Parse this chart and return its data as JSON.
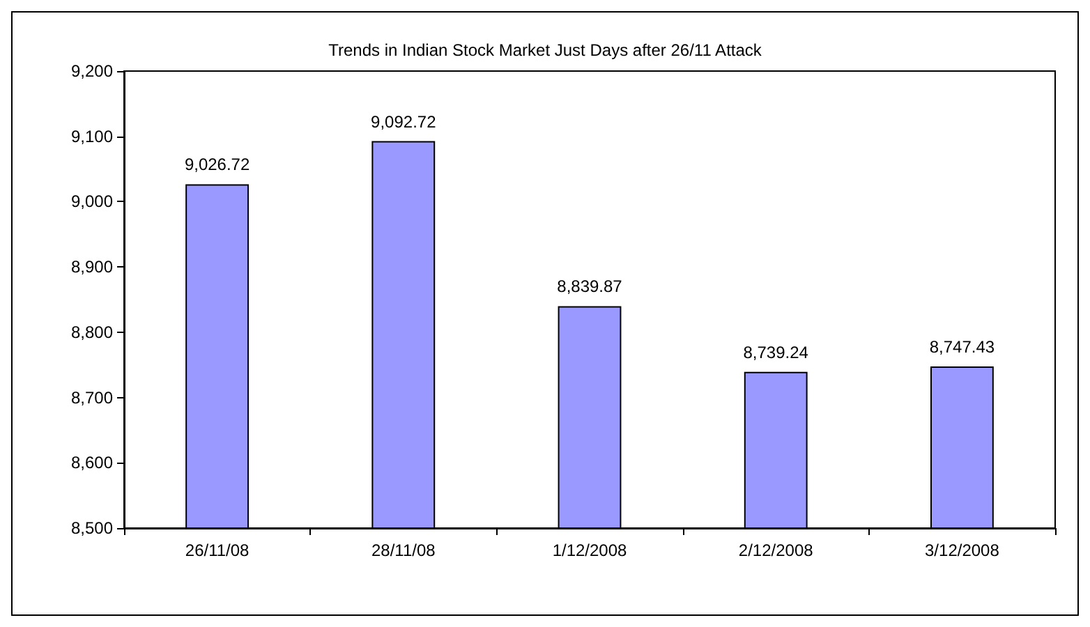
{
  "chart_data": {
    "type": "bar",
    "title": "Trends in Indian Stock Market Just Days after 26/11 Attack",
    "categories": [
      "26/11/08",
      "28/11/08",
      "1/12/2008",
      "2/12/2008",
      "3/12/2008"
    ],
    "values": [
      9026.72,
      9092.72,
      8839.87,
      8739.24,
      8747.43
    ],
    "value_labels": [
      "9,026.72",
      "9,092.72",
      "8,839.87",
      "8,739.24",
      "8,747.43"
    ],
    "color": "#9999ff",
    "ylim": [
      8500,
      9200
    ],
    "yticks": [
      {
        "value": 8500,
        "label": "8,500"
      },
      {
        "value": 8600,
        "label": "8,600"
      },
      {
        "value": 8700,
        "label": "8,700"
      },
      {
        "value": 8800,
        "label": "8,800"
      },
      {
        "value": 8900,
        "label": "8,900"
      },
      {
        "value": 9000,
        "label": "9,000"
      },
      {
        "value": 9100,
        "label": "9,100"
      },
      {
        "value": 9200,
        "label": "9,200"
      }
    ],
    "grid": false
  }
}
